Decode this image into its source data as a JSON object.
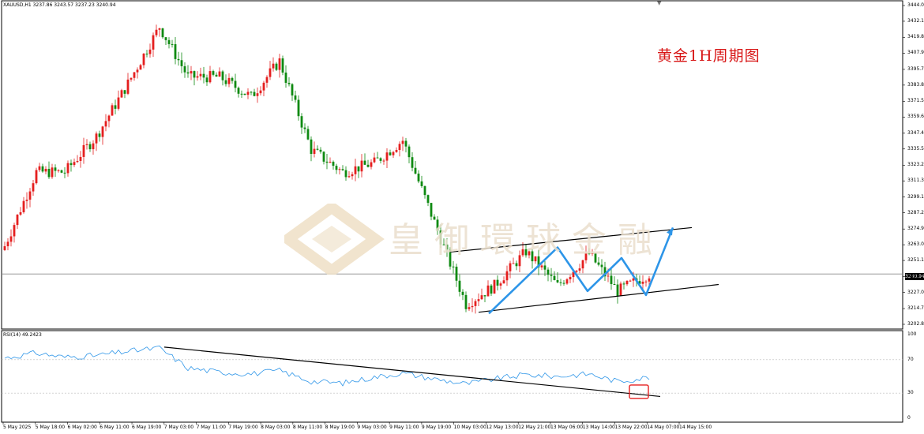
{
  "symbol_header": "XAUUSD,H1  3237.86 3243.57 3237.23 3240.94",
  "rsi_header": "RSI(14) 49.2423",
  "annotation_cn": "黄金1H周期图",
  "watermark_text": "皇御環球金融",
  "current_price_tag": "3240.94",
  "colors": {
    "bull": "#e51f1f",
    "bear": "#0f8a12",
    "trend": "#2d95e8",
    "rsi": "#2d95e8",
    "box": "#e51f1f"
  },
  "price_axis": {
    "labels": [
      "3444.00",
      "3432.10",
      "3419.85",
      "3407.95",
      "3395.70",
      "3383.80",
      "3371.55",
      "3359.65",
      "3347.40",
      "3335.50",
      "3323.25",
      "3311.35",
      "3299.10",
      "3287.20",
      "3274.95",
      "3263.05",
      "3251.15",
      "3239.00",
      "3227.00",
      "3214.75",
      "3202.85"
    ]
  },
  "rsi_axis": {
    "labels": [
      "100",
      "70",
      "30",
      "0"
    ]
  },
  "time_axis": {
    "labels": [
      "5 May 2025",
      "5 May 18:00",
      "6 May 02:00",
      "6 May 11:00",
      "6 May 19:00",
      "7 May 03:00",
      "7 May 11:00",
      "7 May 19:00",
      "8 May 03:00",
      "8 May 11:00",
      "8 May 19:00",
      "9 May 03:00",
      "9 May 11:00",
      "9 May 19:00",
      "10 May 03:00",
      "12 May 13:00",
      "12 May 21:00",
      "13 May 06:00",
      "13 May 14:00",
      "13 May 22:00",
      "14 May 07:00",
      "14 May 15:00"
    ]
  },
  "chart_data": {
    "type": "candlestick",
    "title": "黄金1H周期图",
    "symbol": "XAUUSD",
    "timeframe": "H1",
    "ylim": [
      3202.85,
      3444.0
    ],
    "rsi_period": 14,
    "rsi_last": 49.2423,
    "rsi_levels": [
      70,
      30
    ],
    "last_price": 3240.94,
    "x": [
      "5 May 2025",
      "5 May 18:00",
      "6 May 02:00",
      "6 May 11:00",
      "6 May 19:00",
      "7 May 03:00",
      "7 May 11:00",
      "7 May 19:00",
      "8 May 03:00",
      "8 May 11:00",
      "8 May 19:00",
      "9 May 03:00",
      "9 May 11:00",
      "9 May 19:00",
      "10 May 03:00",
      "12 May 13:00",
      "12 May 21:00",
      "13 May 06:00",
      "13 May 14:00",
      "13 May 22:00",
      "14 May 07:00",
      "14 May 15:00"
    ],
    "close": [
      3262,
      3318,
      3318,
      3345,
      3385,
      3428,
      3390,
      3390,
      3375,
      3402,
      3335,
      3318,
      3325,
      3342,
      3280,
      3218,
      3232,
      3258,
      3232,
      3256,
      3228,
      3241
    ],
    "rsi": [
      72,
      78,
      73,
      75,
      80,
      84,
      60,
      55,
      53,
      57,
      44,
      42,
      49,
      54,
      47,
      41,
      47,
      52,
      50,
      53,
      44,
      49
    ]
  }
}
